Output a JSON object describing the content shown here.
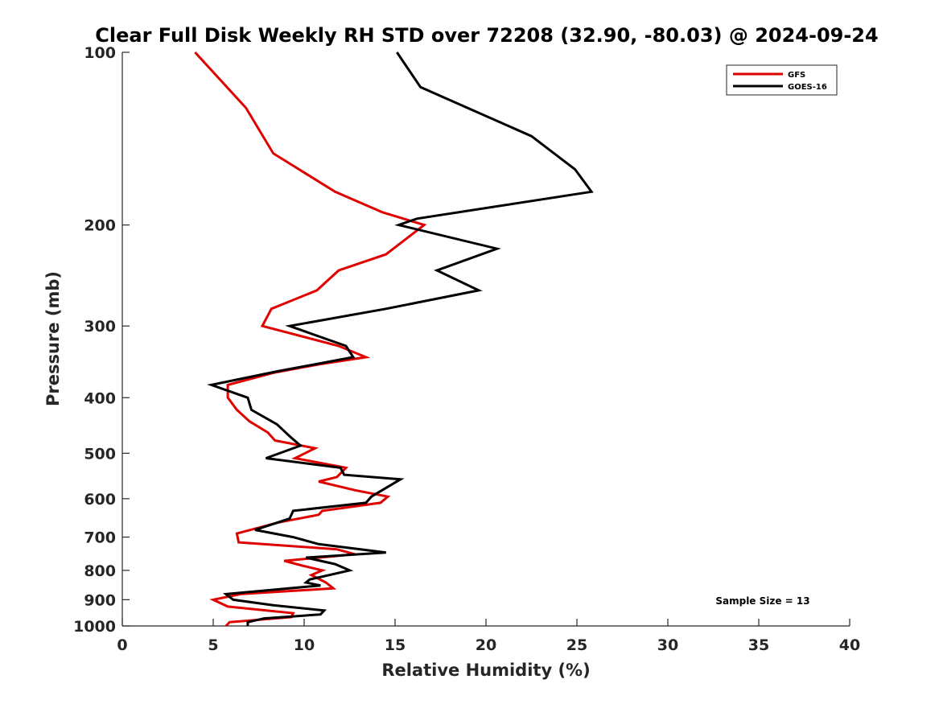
{
  "chart_data": {
    "type": "line",
    "title": "Clear Full Disk Weekly RH STD over 72208 (32.90, -80.03) @ 2024-09-24",
    "xlabel": "Relative Humidity (%)",
    "ylabel": "Pressure (mb)",
    "xlim": [
      0,
      40
    ],
    "ylim": [
      1000,
      100
    ],
    "y_scale": "log",
    "y_reversed": true,
    "grid": false,
    "legend_position": "top-right",
    "x_ticks": [
      0,
      5,
      10,
      15,
      20,
      25,
      30,
      35,
      40
    ],
    "x_tick_labels": [
      "0",
      "5",
      "10",
      "15",
      "20",
      "25",
      "30",
      "35",
      "40"
    ],
    "y_ticks": [
      100,
      200,
      300,
      400,
      500,
      600,
      700,
      800,
      900,
      1000
    ],
    "y_tick_labels": [
      "100",
      "200",
      "300",
      "400",
      "500",
      "600",
      "700",
      "800",
      "900",
      "1000"
    ],
    "annotation": "Sample Size = 13",
    "series": [
      {
        "name": "GFS",
        "color": "#e00000",
        "points": [
          [
            4.0,
            100
          ],
          [
            6.8,
            125
          ],
          [
            8.3,
            150
          ],
          [
            11.7,
            175
          ],
          [
            14.3,
            190
          ],
          [
            16.6,
            200
          ],
          [
            14.5,
            225
          ],
          [
            11.9,
            240
          ],
          [
            10.7,
            260
          ],
          [
            8.2,
            280
          ],
          [
            7.7,
            300
          ],
          [
            11.9,
            325
          ],
          [
            13.4,
            340
          ],
          [
            10.8,
            350
          ],
          [
            8.3,
            362
          ],
          [
            5.8,
            380
          ],
          [
            5.8,
            400
          ],
          [
            6.3,
            420
          ],
          [
            7.0,
            440
          ],
          [
            8.0,
            460
          ],
          [
            8.4,
            475
          ],
          [
            10.6,
            490
          ],
          [
            9.5,
            510
          ],
          [
            12.3,
            530
          ],
          [
            11.8,
            550
          ],
          [
            10.8,
            560
          ],
          [
            12.8,
            580
          ],
          [
            14.6,
            595
          ],
          [
            14.2,
            610
          ],
          [
            11.0,
            630
          ],
          [
            10.8,
            640
          ],
          [
            8.6,
            660
          ],
          [
            6.3,
            690
          ],
          [
            6.4,
            715
          ],
          [
            11.8,
            735
          ],
          [
            12.8,
            750
          ],
          [
            8.9,
            770
          ],
          [
            9.9,
            785
          ],
          [
            11.0,
            800
          ],
          [
            10.4,
            815
          ],
          [
            11.2,
            840
          ],
          [
            11.6,
            860
          ],
          [
            6.5,
            880
          ],
          [
            5.0,
            900
          ],
          [
            5.8,
            925
          ],
          [
            9.4,
            950
          ],
          [
            9.3,
            965
          ],
          [
            5.9,
            985
          ],
          [
            5.7,
            1000
          ]
        ]
      },
      {
        "name": "GOES-16",
        "color": "#000000",
        "points": [
          [
            15.1,
            100
          ],
          [
            16.4,
            115
          ],
          [
            22.5,
            140
          ],
          [
            24.9,
            160
          ],
          [
            25.8,
            175
          ],
          [
            16.2,
            195
          ],
          [
            15.2,
            200
          ],
          [
            20.6,
            220
          ],
          [
            17.3,
            240
          ],
          [
            19.6,
            260
          ],
          [
            14.5,
            280
          ],
          [
            9.2,
            300
          ],
          [
            12.3,
            325
          ],
          [
            12.7,
            340
          ],
          [
            8.5,
            360
          ],
          [
            4.9,
            380
          ],
          [
            6.9,
            400
          ],
          [
            7.1,
            420
          ],
          [
            8.5,
            445
          ],
          [
            9.3,
            470
          ],
          [
            9.8,
            485
          ],
          [
            7.9,
            510
          ],
          [
            12.0,
            530
          ],
          [
            12.2,
            545
          ],
          [
            15.3,
            555
          ],
          [
            13.7,
            595
          ],
          [
            13.4,
            610
          ],
          [
            9.4,
            630
          ],
          [
            9.2,
            650
          ],
          [
            7.3,
            680
          ],
          [
            9.4,
            700
          ],
          [
            10.8,
            720
          ],
          [
            14.5,
            745
          ],
          [
            10.1,
            760
          ],
          [
            11.7,
            780
          ],
          [
            12.5,
            800
          ],
          [
            10.3,
            830
          ],
          [
            10.1,
            840
          ],
          [
            10.9,
            850
          ],
          [
            5.7,
            880
          ],
          [
            6.1,
            900
          ],
          [
            8.3,
            920
          ],
          [
            11.1,
            940
          ],
          [
            10.9,
            955
          ],
          [
            7.8,
            970
          ],
          [
            6.9,
            985
          ],
          [
            6.9,
            1000
          ]
        ]
      }
    ]
  }
}
